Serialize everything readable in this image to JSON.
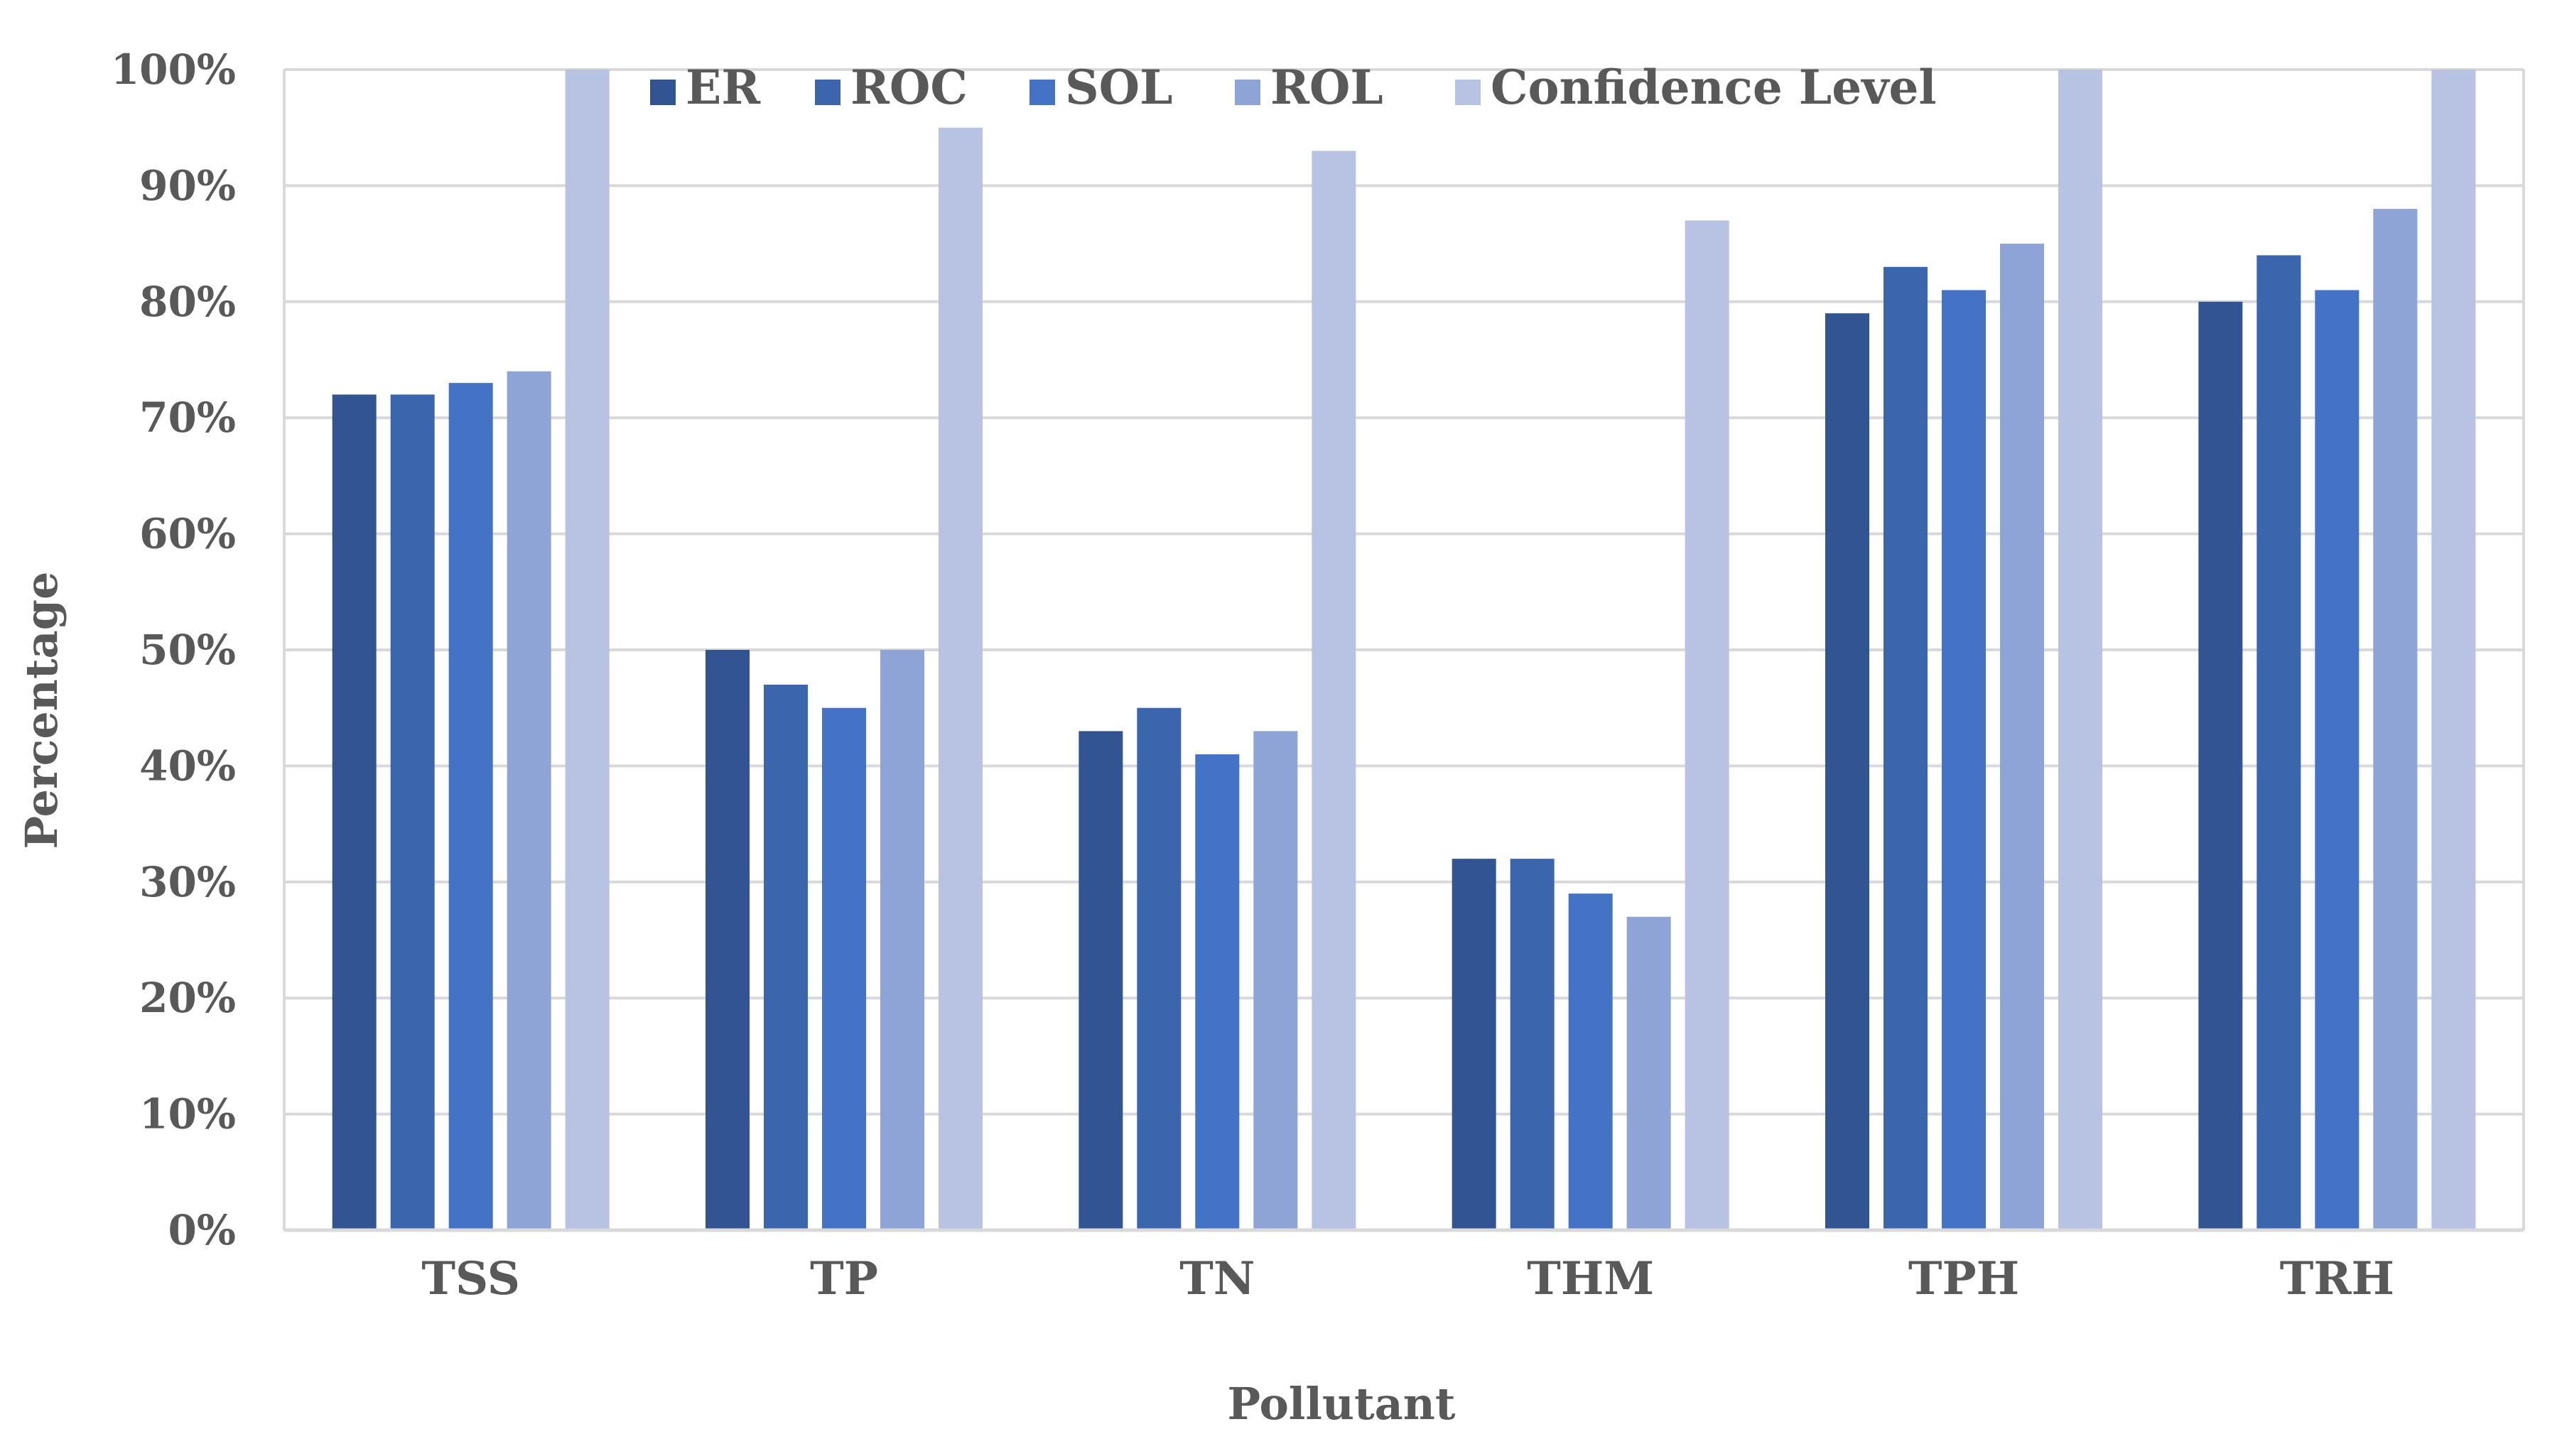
{
  "chart_data": {
    "type": "bar",
    "title": "",
    "xlabel": "Pollutant",
    "ylabel": "Percentage",
    "ylim": [
      0,
      100
    ],
    "yticks": [
      0,
      10,
      20,
      30,
      40,
      50,
      60,
      70,
      80,
      90,
      100
    ],
    "ytick_labels": [
      "0%",
      "10%",
      "20%",
      "30%",
      "40%",
      "50%",
      "60%",
      "70%",
      "80%",
      "90%",
      "100%"
    ],
    "grid": true,
    "legend_position": "top-center",
    "categories": [
      "TSS",
      "TP",
      "TN",
      "THM",
      "TPH",
      "TRH"
    ],
    "series": [
      {
        "name": "ER",
        "color": "#325493",
        "values": [
          72,
          50,
          43,
          32,
          79,
          80
        ]
      },
      {
        "name": "ROC",
        "color": "#3b65ad",
        "values": [
          72,
          47,
          45,
          32,
          83,
          84
        ]
      },
      {
        "name": "SOL",
        "color": "#4472c4",
        "values": [
          73,
          45,
          41,
          29,
          81,
          81
        ]
      },
      {
        "name": "ROL",
        "color": "#8fa4d6",
        "values": [
          74,
          50,
          43,
          27,
          85,
          88
        ]
      },
      {
        "name": "Confidence Level",
        "color": "#b8c2e2",
        "values": [
          100,
          95,
          93,
          87,
          100,
          100
        ]
      }
    ]
  },
  "colors": {
    "gridline": "#d9d9d9",
    "axis_text": "#595959",
    "background": "#ffffff"
  }
}
